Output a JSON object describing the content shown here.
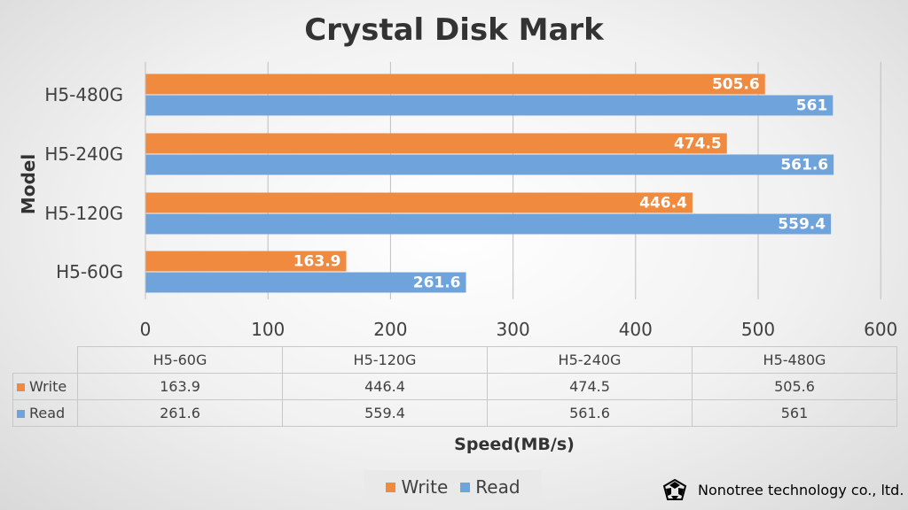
{
  "chart_data": {
    "type": "bar",
    "orientation": "horizontal",
    "title": "Crystal Disk Mark",
    "xlabel": "Speed(MB/s)",
    "ylabel": "Model",
    "categories": [
      "H5-60G",
      "H5-120G",
      "H5-240G",
      "H5-480G"
    ],
    "series": [
      {
        "name": "Write",
        "values": [
          163.9,
          446.4,
          474.5,
          505.6
        ],
        "color": "#f08a3e"
      },
      {
        "name": "Read",
        "values": [
          261.6,
          559.4,
          561.6,
          561
        ],
        "color": "#6fa3dc"
      }
    ],
    "xlim": [
      0,
      600
    ],
    "xticks": [
      "0",
      "100",
      "200",
      "300",
      "400",
      "500",
      "600"
    ],
    "value_labels": {
      "Write": [
        "163.9",
        "446.4",
        "474.5",
        "505.6"
      ],
      "Read": [
        "261.6",
        "559.4",
        "561.6",
        "561"
      ]
    },
    "grid": "vertical",
    "legend": "bottom",
    "data_table": true
  },
  "footer": {
    "company": "Nonotree technology co., ltd.",
    "logo_icon": "nonotree-logo-icon"
  }
}
